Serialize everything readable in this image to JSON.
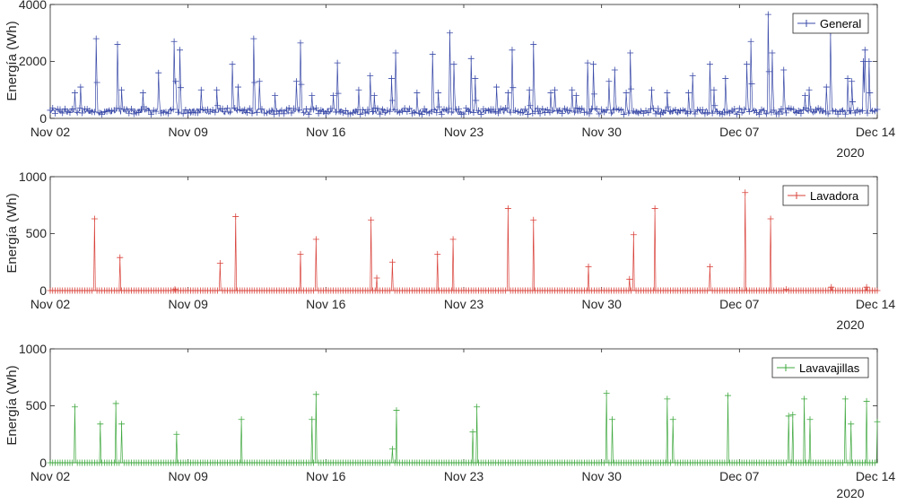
{
  "x_tick_labels": [
    "Nov 02",
    "Nov 09",
    "Nov 16",
    "Nov 23",
    "Nov 30",
    "Dec 07",
    "Dec 14"
  ],
  "year_label": "2020",
  "colors": {
    "general": "#3a4aa8",
    "lavadora": "#d9413a",
    "lavavajillas": "#3fa83f",
    "axis": "#262626"
  },
  "chart_data": [
    {
      "type": "line",
      "marker": "plus",
      "legend": "General",
      "legend_position": "top-right",
      "ylabel": "Energía (Wh)",
      "y_ticks": [
        0,
        2000,
        4000
      ],
      "ylim": [
        0,
        4000
      ],
      "x_range": [
        "2020-11-02",
        "2020-12-14"
      ],
      "x_tick_labels": [
        "Nov 02",
        "Nov 09",
        "Nov 16",
        "Nov 23",
        "Nov 30",
        "Dec 07",
        "Dec 14"
      ],
      "year_label": "2020",
      "sampling": "hourly",
      "baseline_wh": 250,
      "peaks": [
        {
          "date": "2020-11-03",
          "value": 900
        },
        {
          "date": "2020-11-03",
          "value": 1100
        },
        {
          "date": "2020-11-04",
          "value": 2800
        },
        {
          "date": "2020-11-05",
          "value": 1000
        },
        {
          "date": "2020-11-05",
          "value": 2600
        },
        {
          "date": "2020-11-06",
          "value": 900
        },
        {
          "date": "2020-11-07",
          "value": 1600
        },
        {
          "date": "2020-11-08",
          "value": 2700
        },
        {
          "date": "2020-11-08",
          "value": 2400
        },
        {
          "date": "2020-11-08",
          "value": 1300
        },
        {
          "date": "2020-11-09",
          "value": 1000
        },
        {
          "date": "2020-11-10",
          "value": 1000
        },
        {
          "date": "2020-11-11",
          "value": 1900
        },
        {
          "date": "2020-11-11",
          "value": 1100
        },
        {
          "date": "2020-11-12",
          "value": 2800
        },
        {
          "date": "2020-11-12",
          "value": 1300
        },
        {
          "date": "2020-11-13",
          "value": 800
        },
        {
          "date": "2020-11-14",
          "value": 2650
        },
        {
          "date": "2020-11-14",
          "value": 1300
        },
        {
          "date": "2020-11-15",
          "value": 800
        },
        {
          "date": "2020-11-16",
          "value": 1950
        },
        {
          "date": "2020-11-16",
          "value": 800
        },
        {
          "date": "2020-11-17",
          "value": 1000
        },
        {
          "date": "2020-11-18",
          "value": 800
        },
        {
          "date": "2020-11-18",
          "value": 1500
        },
        {
          "date": "2020-11-19",
          "value": 2300
        },
        {
          "date": "2020-11-19",
          "value": 1400
        },
        {
          "date": "2020-11-20",
          "value": 900
        },
        {
          "date": "2020-11-21",
          "value": 2250
        },
        {
          "date": "2020-11-21",
          "value": 900
        },
        {
          "date": "2020-11-22",
          "value": 1900
        },
        {
          "date": "2020-11-22",
          "value": 3000
        },
        {
          "date": "2020-11-23",
          "value": 1400
        },
        {
          "date": "2020-11-23",
          "value": 2100
        },
        {
          "date": "2020-11-24",
          "value": 1100
        },
        {
          "date": "2020-11-25",
          "value": 2400
        },
        {
          "date": "2020-11-25",
          "value": 900
        },
        {
          "date": "2020-11-26",
          "value": 2600
        },
        {
          "date": "2020-11-26",
          "value": 1000
        },
        {
          "date": "2020-11-27",
          "value": 1000
        },
        {
          "date": "2020-11-27",
          "value": 900
        },
        {
          "date": "2020-11-28",
          "value": 800
        },
        {
          "date": "2020-11-28",
          "value": 1000
        },
        {
          "date": "2020-11-29",
          "value": 1950
        },
        {
          "date": "2020-11-29",
          "value": 1900
        },
        {
          "date": "2020-11-30",
          "value": 1300
        },
        {
          "date": "2020-11-30",
          "value": 1700
        },
        {
          "date": "2020-12-01",
          "value": 2300
        },
        {
          "date": "2020-12-01",
          "value": 900
        },
        {
          "date": "2020-12-02",
          "value": 1000
        },
        {
          "date": "2020-12-03",
          "value": 900
        },
        {
          "date": "2020-12-04",
          "value": 1500
        },
        {
          "date": "2020-12-04",
          "value": 900
        },
        {
          "date": "2020-12-05",
          "value": 1000
        },
        {
          "date": "2020-12-05",
          "value": 1900
        },
        {
          "date": "2020-12-06",
          "value": 1400
        },
        {
          "date": "2020-12-07",
          "value": 2700
        },
        {
          "date": "2020-12-07",
          "value": 1900
        },
        {
          "date": "2020-12-08",
          "value": 2300
        },
        {
          "date": "2020-12-08",
          "value": 3650
        },
        {
          "date": "2020-12-09",
          "value": 1700
        },
        {
          "date": "2020-12-10",
          "value": 1000
        },
        {
          "date": "2020-12-10",
          "value": 800
        },
        {
          "date": "2020-12-11",
          "value": 3000
        },
        {
          "date": "2020-12-11",
          "value": 1100
        },
        {
          "date": "2020-12-12",
          "value": 1300
        },
        {
          "date": "2020-12-12",
          "value": 1400
        },
        {
          "date": "2020-12-13",
          "value": 2000
        },
        {
          "date": "2020-12-13",
          "value": 2000
        },
        {
          "date": "2020-12-13",
          "value": 2400
        }
      ]
    },
    {
      "type": "line",
      "marker": "plus",
      "legend": "Lavadora",
      "legend_position": "top-right",
      "ylabel": "Energía (Wh)",
      "y_ticks": [
        0,
        500,
        1000
      ],
      "ylim": [
        0,
        1000
      ],
      "x_range": [
        "2020-11-02",
        "2020-12-14"
      ],
      "x_tick_labels": [
        "Nov 02",
        "Nov 09",
        "Nov 16",
        "Nov 23",
        "Nov 30",
        "Dec 07",
        "Dec 14"
      ],
      "year_label": "2020",
      "sampling": "hourly",
      "baseline_wh": 0,
      "peaks": [
        {
          "date": "2020-11-04",
          "value": 630
        },
        {
          "date": "2020-11-05",
          "value": 290
        },
        {
          "date": "2020-11-08",
          "value": 10
        },
        {
          "date": "2020-11-10",
          "value": 240
        },
        {
          "date": "2020-11-11",
          "value": 650
        },
        {
          "date": "2020-11-14",
          "value": 320
        },
        {
          "date": "2020-11-15",
          "value": 450
        },
        {
          "date": "2020-11-18",
          "value": 620
        },
        {
          "date": "2020-11-18",
          "value": 110
        },
        {
          "date": "2020-11-19",
          "value": 250
        },
        {
          "date": "2020-11-21",
          "value": 320
        },
        {
          "date": "2020-11-22",
          "value": 450
        },
        {
          "date": "2020-11-25",
          "value": 720
        },
        {
          "date": "2020-11-26",
          "value": 620
        },
        {
          "date": "2020-11-29",
          "value": 210
        },
        {
          "date": "2020-12-01",
          "value": 490
        },
        {
          "date": "2020-12-01",
          "value": 100
        },
        {
          "date": "2020-12-02",
          "value": 720
        },
        {
          "date": "2020-12-05",
          "value": 210
        },
        {
          "date": "2020-12-07",
          "value": 860
        },
        {
          "date": "2020-12-08",
          "value": 630
        },
        {
          "date": "2020-12-09",
          "value": 10
        },
        {
          "date": "2020-12-11",
          "value": 30
        },
        {
          "date": "2020-12-13",
          "value": 30
        }
      ]
    },
    {
      "type": "line",
      "marker": "plus",
      "legend": "Lavavajillas",
      "legend_position": "top-right",
      "ylabel": "Energía (Wh)",
      "y_ticks": [
        0,
        500,
        1000
      ],
      "ylim": [
        0,
        1000
      ],
      "x_range": [
        "2020-11-02",
        "2020-12-14"
      ],
      "x_tick_labels": [
        "Nov 02",
        "Nov 09",
        "Nov 16",
        "Nov 23",
        "Nov 30",
        "Dec 07",
        "Dec 14"
      ],
      "year_label": "2020",
      "sampling": "hourly",
      "baseline_wh": 0,
      "peaks": [
        {
          "date": "2020-11-03",
          "value": 490
        },
        {
          "date": "2020-11-04",
          "value": 340
        },
        {
          "date": "2020-11-05",
          "value": 520
        },
        {
          "date": "2020-11-05",
          "value": 340
        },
        {
          "date": "2020-11-08",
          "value": 250
        },
        {
          "date": "2020-11-11",
          "value": 380
        },
        {
          "date": "2020-11-15",
          "value": 600
        },
        {
          "date": "2020-11-15",
          "value": 380
        },
        {
          "date": "2020-11-19",
          "value": 460
        },
        {
          "date": "2020-11-19",
          "value": 120
        },
        {
          "date": "2020-11-23",
          "value": 490
        },
        {
          "date": "2020-11-23",
          "value": 270
        },
        {
          "date": "2020-11-30",
          "value": 610
        },
        {
          "date": "2020-11-30",
          "value": 380
        },
        {
          "date": "2020-12-03",
          "value": 560
        },
        {
          "date": "2020-12-03",
          "value": 380
        },
        {
          "date": "2020-12-06",
          "value": 590
        },
        {
          "date": "2020-12-09",
          "value": 420
        },
        {
          "date": "2020-12-09",
          "value": 410
        },
        {
          "date": "2020-12-10",
          "value": 560
        },
        {
          "date": "2020-12-10",
          "value": 380
        },
        {
          "date": "2020-12-12",
          "value": 560
        },
        {
          "date": "2020-12-12",
          "value": 340
        },
        {
          "date": "2020-12-13",
          "value": 540
        },
        {
          "date": "2020-12-14",
          "value": 360
        }
      ]
    }
  ]
}
